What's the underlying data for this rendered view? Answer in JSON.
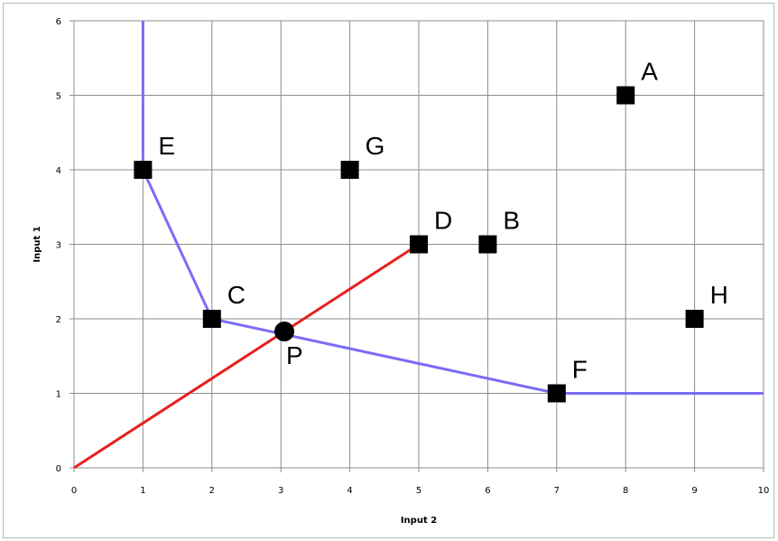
{
  "chart_data": {
    "type": "scatter",
    "xlabel": "Input 2",
    "ylabel": "Input 1",
    "xlim": [
      0,
      10
    ],
    "ylim": [
      0,
      6
    ],
    "grid": true,
    "x_ticks": [
      "0",
      "1",
      "2",
      "3",
      "4",
      "5",
      "6",
      "7",
      "8",
      "9",
      "10"
    ],
    "y_ticks": [
      "0",
      "1",
      "2",
      "3",
      "4",
      "5",
      "6"
    ],
    "points": [
      {
        "label": "A",
        "x": 8,
        "y": 5,
        "marker": "square"
      },
      {
        "label": "B",
        "x": 6,
        "y": 3,
        "marker": "square"
      },
      {
        "label": "C",
        "x": 2,
        "y": 2,
        "marker": "square"
      },
      {
        "label": "D",
        "x": 5,
        "y": 3,
        "marker": "square"
      },
      {
        "label": "E",
        "x": 1,
        "y": 4,
        "marker": "square"
      },
      {
        "label": "F",
        "x": 7,
        "y": 1,
        "marker": "square"
      },
      {
        "label": "G",
        "x": 4,
        "y": 4,
        "marker": "square"
      },
      {
        "label": "H",
        "x": 9,
        "y": 2,
        "marker": "square"
      },
      {
        "label": "P",
        "x": 3.05,
        "y": 1.83,
        "marker": "circle"
      }
    ],
    "lines": [
      {
        "color": "#7b6cf6",
        "points": [
          [
            1,
            6
          ],
          [
            1,
            4
          ],
          [
            2,
            2
          ],
          [
            7,
            1
          ],
          [
            10,
            1
          ]
        ]
      },
      {
        "color": "#e81f1f",
        "points": [
          [
            0,
            0
          ],
          [
            5,
            3
          ]
        ]
      }
    ]
  }
}
